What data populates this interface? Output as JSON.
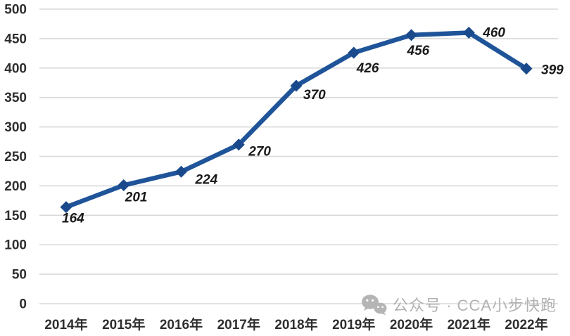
{
  "watermark": {
    "icon": "wechat-icon",
    "text": "公众号 · CCA小步快跑"
  },
  "colors": {
    "line": "#1F5499",
    "marker": "#1A4A8C",
    "grid": "#D9D9D9",
    "axis_text": "#2E2E2E",
    "data_label_text": "#1A1A1A",
    "watermark_text": "#B2B2B2",
    "background": "#FFFFFF"
  },
  "chart_data": {
    "type": "line",
    "categories": [
      "2014年",
      "2015年",
      "2016年",
      "2017年",
      "2018年",
      "2019年",
      "2020年",
      "2021年",
      "2022年"
    ],
    "values": [
      164,
      201,
      224,
      270,
      370,
      426,
      456,
      460,
      399
    ],
    "series": [
      {
        "name": "",
        "values": [
          164,
          201,
          224,
          270,
          370,
          426,
          456,
          460,
          399
        ]
      }
    ],
    "title": "",
    "xlabel": "",
    "ylabel": "",
    "ylim": [
      0,
      500
    ],
    "ytick_step": 50,
    "ytick_labels": [
      "0",
      "50",
      "100",
      "150",
      "200",
      "250",
      "300",
      "350",
      "400",
      "450",
      "500"
    ],
    "grid": true,
    "legend": false,
    "marker": "diamond",
    "data_labels_visible": true
  }
}
